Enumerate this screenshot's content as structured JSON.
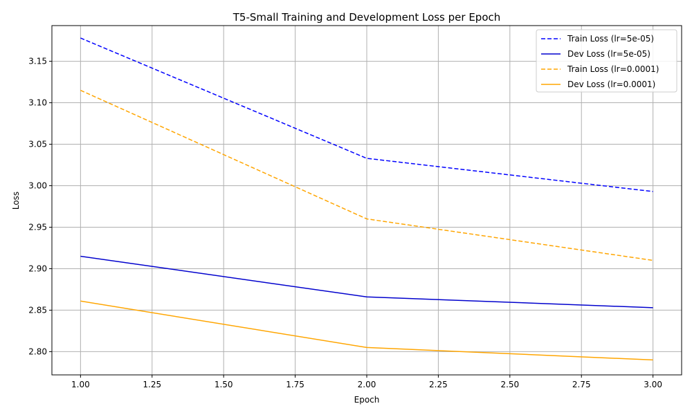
{
  "chart_data": {
    "type": "line",
    "title": "T5-Small Training and Development Loss per Epoch",
    "xlabel": "Epoch",
    "ylabel": "Loss",
    "xlim": [
      0.9,
      3.1
    ],
    "ylim": [
      2.772,
      3.193
    ],
    "xticks": [
      1.0,
      1.25,
      1.5,
      1.75,
      2.0,
      2.25,
      2.5,
      2.75,
      3.0
    ],
    "xtick_labels": [
      "1.00",
      "1.25",
      "1.50",
      "1.75",
      "2.00",
      "2.25",
      "2.50",
      "2.75",
      "3.00"
    ],
    "yticks": [
      2.8,
      2.85,
      2.9,
      2.95,
      3.0,
      3.05,
      3.1,
      3.15
    ],
    "ytick_labels": [
      "2.80",
      "2.85",
      "2.90",
      "2.95",
      "3.00",
      "3.05",
      "3.10",
      "3.15"
    ],
    "grid": true,
    "legend_position": "top-right",
    "x": [
      1,
      2,
      3
    ],
    "series": [
      {
        "name": "Train Loss (lr=5e-05)",
        "values": [
          3.178,
          3.033,
          2.993
        ],
        "color": "#0000ff",
        "dashed": true
      },
      {
        "name": "Dev Loss (lr=5e-05)",
        "values": [
          2.915,
          2.866,
          2.853
        ],
        "color": "#0000cd",
        "dashed": false
      },
      {
        "name": "Train Loss (lr=0.0001)",
        "values": [
          3.115,
          2.96,
          2.91
        ],
        "color": "#ffa500",
        "dashed": true
      },
      {
        "name": "Dev Loss (lr=0.0001)",
        "values": [
          2.861,
          2.805,
          2.79
        ],
        "color": "#ffa500",
        "dashed": false
      }
    ]
  }
}
